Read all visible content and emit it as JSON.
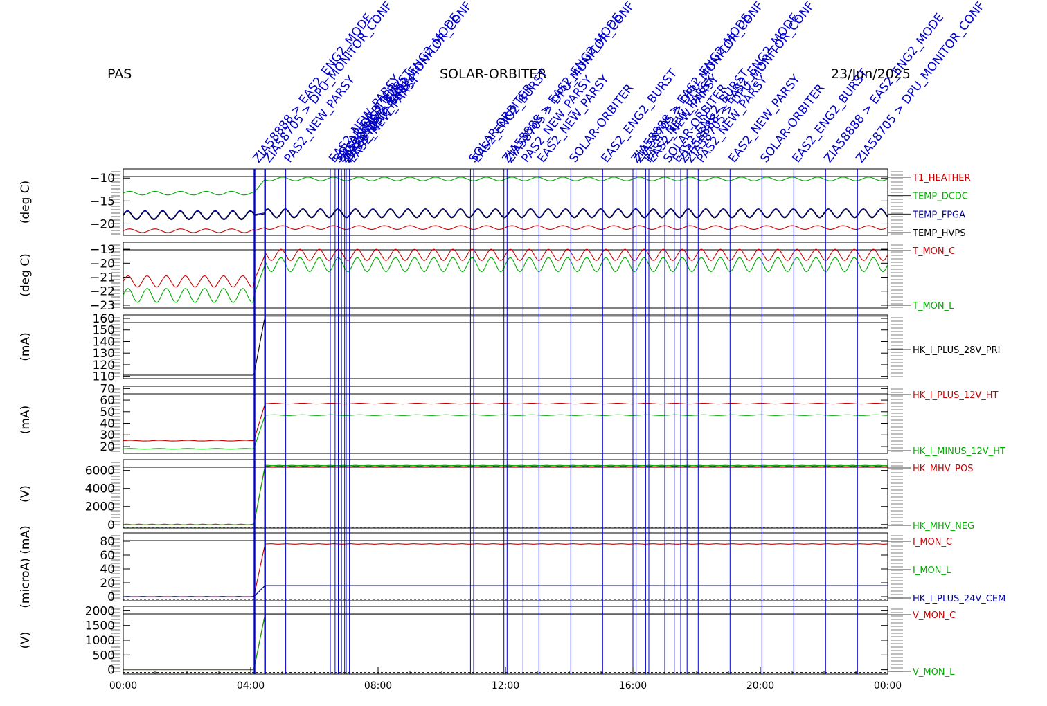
{
  "header": {
    "instrument": "PAS",
    "mission": "SOLAR-ORBITER",
    "date": "23/Jun/2025"
  },
  "chart_data": {
    "type": "line",
    "x_axis": {
      "range_hours": [
        0,
        24
      ],
      "tick_labels": [
        "00:00",
        "04:00",
        "08:00",
        "12:00",
        "16:00",
        "20:00",
        "00:00"
      ]
    },
    "telecommand_markers": {
      "color": "#0000cc",
      "times_hours": [
        4.12,
        4.45,
        5.1,
        6.5,
        6.65,
        6.75,
        6.85,
        6.95,
        7.0,
        7.1,
        10.9,
        11.0,
        11.95,
        12.05,
        12.55,
        13.05,
        14.05,
        15.05,
        16.0,
        16.1,
        16.4,
        16.5,
        17.0,
        17.3,
        17.5,
        17.7,
        18.05,
        19.05,
        20.05,
        21.05,
        22.05,
        23.05
      ],
      "labels": [
        "ZIA58888 > EAS2_ENG2_MODE",
        "ZIA58705 > DPU_MONITOR_CONF",
        "PAS2_NEW_PARSY",
        "EAS2_NEW_PARSY",
        "SOLAR-ORBITER",
        "EAS2_ENG2_BURST"
      ]
    },
    "panels": [
      {
        "ylabel": "(deg C)",
        "ylim": [
          -22.5,
          -8
        ],
        "yticks": [
          -10,
          -15,
          -20
        ],
        "series": [
          {
            "name": "T1_HEATHER",
            "color": "#cc0000",
            "before": -21.5,
            "after": -20.8,
            "amp": 0.4,
            "period_h": 0.8
          },
          {
            "name": "TEMP_DCDC",
            "color": "#00aa00",
            "before": -13.3,
            "after": -10.2,
            "amp": 0.4,
            "period_h": 0.8
          },
          {
            "name": "TEMP_FPGA",
            "color": "#0000aa",
            "before": -18.0,
            "after": -17.6,
            "amp": 0.9,
            "period_h": 0.55
          },
          {
            "name": "TEMP_HVPS",
            "color": "#000000",
            "before": -18.2,
            "after": -17.8,
            "amp": 0.9,
            "period_h": 0.55
          }
        ]
      },
      {
        "ylabel": "(deg C)",
        "ylim": [
          -23.2,
          -18.5
        ],
        "yticks": [
          -19,
          -20,
          -21,
          -22,
          -23
        ],
        "series": [
          {
            "name": "T_MON_C",
            "color": "#cc0000",
            "before": -21.3,
            "after": -19.4,
            "amp": 0.4,
            "period_h": 0.6
          },
          {
            "name": "T_MON_L",
            "color": "#00aa00",
            "before": -22.3,
            "after": -20.1,
            "amp": 0.5,
            "period_h": 0.6
          }
        ]
      },
      {
        "ylabel": "(mA)",
        "ylim": [
          108,
          163
        ],
        "yticks": [
          160,
          150,
          140,
          130,
          120,
          110
        ],
        "series": [
          {
            "name": "HK_I_PLUS_28V_PRI",
            "color": "#000000",
            "before": 111,
            "after": 162,
            "amp": 0,
            "period_h": 1
          }
        ]
      },
      {
        "ylabel": "(mA)",
        "ylim": [
          14,
          72
        ],
        "yticks": [
          70,
          60,
          50,
          40,
          30,
          20
        ],
        "series": [
          {
            "name": "HK_I_PLUS_12V_HT",
            "color": "#cc0000",
            "before": 25,
            "after": 57,
            "amp": 0.3,
            "period_h": 0.9
          },
          {
            "name": "HK_I_MINUS_12V_HT",
            "color": "#00aa00",
            "before": 18,
            "after": 47,
            "amp": 0.3,
            "period_h": 0.9
          }
        ]
      },
      {
        "ylabel": "(V)",
        "ylim": [
          -400,
          7200
        ],
        "yticks": [
          6000,
          4000,
          2000,
          0
        ],
        "series": [
          {
            "name": "HK_MHV_POS",
            "color": "#cc0000",
            "before": 0,
            "after": 6450,
            "amp": 40,
            "period_h": 0.4
          },
          {
            "name": "HK_MHV_NEG",
            "color": "#00aa00",
            "before": 0,
            "after": 6550,
            "amp": 20,
            "period_h": 0.4
          }
        ]
      },
      {
        "ylabel": "(microA) (mA)",
        "ylim": [
          -6,
          92
        ],
        "yticks": [
          80,
          60,
          40,
          20,
          0
        ],
        "series": [
          {
            "name": "I_MON_C",
            "color": "#cc0000",
            "before": 0,
            "after": 76,
            "amp": 0.3,
            "period_h": 0.5
          },
          {
            "name": "I_MON_L",
            "color": "#00aa00",
            "before": 0,
            "after": 16,
            "amp": 0,
            "period_h": 1
          },
          {
            "name": "HK_I_PLUS_24V_CEM",
            "color": "#0000aa",
            "before": 0,
            "after": 16,
            "amp": 0,
            "period_h": 1
          }
        ]
      },
      {
        "ylabel": "(V)",
        "ylim": [
          -150,
          2150
        ],
        "yticks": [
          2000,
          1500,
          1000,
          500,
          0
        ],
        "series": [
          {
            "name": "V_MON_C",
            "color": "#cc0000",
            "before": 0,
            "after": 1880,
            "amp": 0,
            "period_h": 1
          },
          {
            "name": "V_MON_L",
            "color": "#00aa00",
            "before": 0,
            "after": 1880,
            "amp": 0,
            "period_h": 1
          }
        ]
      }
    ]
  }
}
